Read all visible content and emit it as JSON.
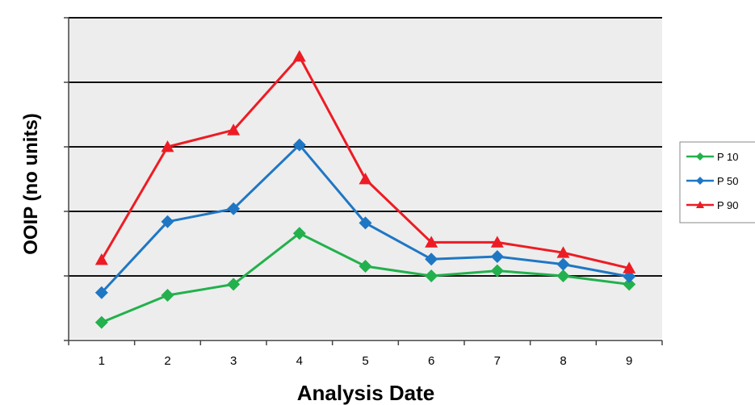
{
  "chart_data": {
    "type": "line",
    "title": "",
    "xlabel": "Analysis Date",
    "ylabel": "OOIP (no units)",
    "categories": [
      "1",
      "2",
      "3",
      "4",
      "5",
      "6",
      "7",
      "8",
      "9"
    ],
    "ylim": [
      0,
      5
    ],
    "y_ticks_labeled": false,
    "grid": "horizontal",
    "plot_background": "#ededed",
    "legend_position": "right",
    "series": [
      {
        "name": "P 10",
        "color": "#22b14c",
        "marker": "diamond",
        "values": [
          0.28,
          0.7,
          0.87,
          1.66,
          1.15,
          1.0,
          1.08,
          1.0,
          0.87
        ]
      },
      {
        "name": "P 50",
        "color": "#1f77c4",
        "marker": "diamond",
        "values": [
          0.74,
          1.84,
          2.04,
          3.03,
          1.82,
          1.26,
          1.3,
          1.18,
          0.99
        ]
      },
      {
        "name": "P 90",
        "color": "#ed1c24",
        "marker": "triangle",
        "values": [
          1.25,
          3.0,
          3.26,
          4.4,
          2.5,
          1.52,
          1.52,
          1.36,
          1.12
        ]
      }
    ]
  }
}
